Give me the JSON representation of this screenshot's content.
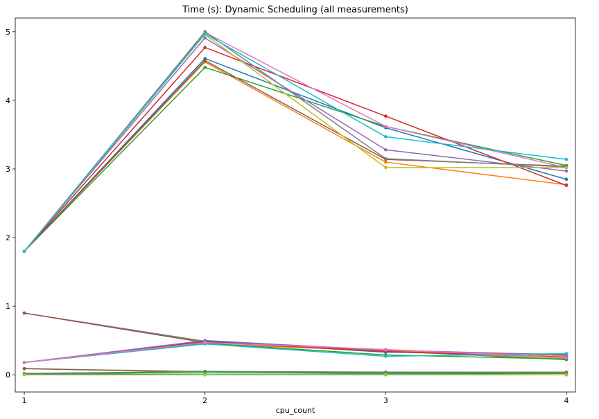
{
  "chart_data": {
    "type": "line",
    "title": "Time (s): Dynamic Scheduling (all measurements)",
    "xlabel": "cpu_count",
    "ylabel": "",
    "x": [
      1,
      2,
      3,
      4
    ],
    "xlim": [
      0.95,
      4.05
    ],
    "ylim": [
      -0.25,
      5.2
    ],
    "xticks": [
      "1",
      "2",
      "3",
      "4"
    ],
    "yticks": [
      "0",
      "1",
      "2",
      "3",
      "4",
      "5"
    ],
    "grid": false,
    "legend": "none",
    "series": [
      {
        "color": "#1f77b4",
        "values": [
          1.8,
          4.61,
          3.6,
          2.85
        ]
      },
      {
        "color": "#ff7f0e",
        "values": [
          1.8,
          4.56,
          3.1,
          2.77
        ]
      },
      {
        "color": "#2ca02c",
        "values": [
          1.8,
          4.48,
          3.62,
          3.05
        ]
      },
      {
        "color": "#d62728",
        "values": [
          1.8,
          4.77,
          3.77,
          2.76
        ]
      },
      {
        "color": "#9467bd",
        "values": [
          1.8,
          4.91,
          3.28,
          2.97
        ]
      },
      {
        "color": "#8c564b",
        "values": [
          1.8,
          4.58,
          3.14,
          3.04
        ]
      },
      {
        "color": "#e377c2",
        "values": [
          1.8,
          4.99,
          3.62,
          3.02
        ]
      },
      {
        "color": "#7f7f7f",
        "values": [
          1.8,
          5.0,
          3.15,
          3.03
        ]
      },
      {
        "color": "#bcbd22",
        "values": [
          1.8,
          4.96,
          3.02,
          3.02
        ]
      },
      {
        "color": "#17becf",
        "values": [
          1.8,
          4.97,
          3.47,
          3.14
        ]
      },
      {
        "color": "#bcbd22",
        "values": [
          0.9,
          0.48,
          0.34,
          0.24
        ]
      },
      {
        "color": "#7f7f7f",
        "values": [
          0.9,
          0.49,
          0.35,
          0.22
        ]
      },
      {
        "color": "#8c564b",
        "values": [
          0.9,
          0.47,
          0.36,
          0.28
        ]
      },
      {
        "color": "#1f77b4",
        "values": [
          0.18,
          0.49,
          0.33,
          0.3
        ]
      },
      {
        "color": "#ff7f0e",
        "values": [
          0.18,
          0.45,
          0.35,
          0.28
        ]
      },
      {
        "color": "#2ca02c",
        "values": [
          0.18,
          0.46,
          0.29,
          0.23
        ]
      },
      {
        "color": "#d62728",
        "values": [
          0.18,
          0.48,
          0.34,
          0.26
        ]
      },
      {
        "color": "#9467bd",
        "values": [
          0.18,
          0.5,
          0.36,
          0.29
        ]
      },
      {
        "color": "#17becf",
        "values": [
          0.18,
          0.45,
          0.27,
          0.31
        ]
      },
      {
        "color": "#e377c2",
        "values": [
          0.18,
          0.47,
          0.37,
          0.25
        ]
      },
      {
        "color": "#bcbd22",
        "values": [
          0.09,
          0.05,
          0.04,
          0.03
        ]
      },
      {
        "color": "#8c564b",
        "values": [
          0.09,
          0.04,
          0.03,
          0.04
        ]
      },
      {
        "color": "#7f7f7f",
        "values": [
          0.02,
          0.05,
          0.04,
          0.04
        ]
      },
      {
        "color": "#2ca02c",
        "values": [
          0.01,
          0.04,
          0.02,
          0.02
        ]
      },
      {
        "color": "#17becf",
        "values": [
          0.01,
          0.01,
          0.01,
          0.0
        ]
      },
      {
        "color": "#1f77b4",
        "values": [
          0.01,
          0.0,
          0.0,
          0.0
        ]
      },
      {
        "color": "#bcbd22",
        "values": [
          0.0,
          0.0,
          0.0,
          0.0
        ]
      }
    ]
  }
}
